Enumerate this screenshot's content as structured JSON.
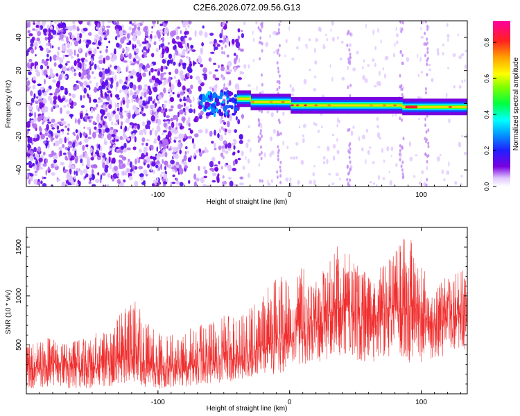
{
  "figure": {
    "title": "C2E6.2026.072.09.56.G13"
  },
  "chart_data": [
    {
      "type": "heatmap",
      "title": "C2E6.2026.072.09.56.G13",
      "xlabel": "Height of straight line (km)",
      "ylabel": "Frequency (Hz)",
      "xlim": [
        -200,
        135
      ],
      "ylim": [
        -50,
        50
      ],
      "xticks": [
        -100,
        0,
        100
      ],
      "xtick_labels": [
        "-100",
        "0",
        "100"
      ],
      "yticks": [
        -40,
        -20,
        0,
        20,
        40
      ],
      "ytick_labels": [
        "-40",
        "-20",
        "0",
        "20",
        "40"
      ],
      "colorbar": {
        "label": "Normalized spectral amplitude",
        "range": [
          0,
          0.92
        ],
        "ticks": [
          0.0,
          0.2,
          0.4,
          0.6,
          0.8
        ],
        "tick_labels": [
          "0.0",
          "0.2",
          "0.4",
          "0.6",
          "0.8"
        ],
        "colormap": "rainbow (white-violet-blue-cyan-green-yellow-orange-red-magenta)"
      },
      "regions": [
        {
          "name": "scattered noise",
          "x_range": [
            -200,
            -35
          ],
          "amplitude": 0.1
        },
        {
          "name": "signal onset cluster",
          "x_range": [
            -68,
            -40
          ],
          "freq_range": [
            -8,
            8
          ],
          "amplitude": 0.25
        },
        {
          "name": "narrow band near 0 Hz",
          "x_range": [
            -40,
            135
          ],
          "freq_center": 0,
          "amplitude": 0.8
        },
        {
          "name": "strongest segment",
          "x_range": [
            88,
            97
          ],
          "freq_center": -2,
          "amplitude": 0.85
        }
      ]
    },
    {
      "type": "line",
      "xlabel": "Height of straight line (km)",
      "ylabel": "SNR (10 * v/v)",
      "xlim": [
        -200,
        135
      ],
      "ylim": [
        0,
        1700
      ],
      "xticks": [
        -100,
        0,
        100
      ],
      "xtick_labels": [
        "-100",
        "0",
        "100"
      ],
      "yticks": [
        500,
        1000,
        1500
      ],
      "ytick_labels": [
        "500",
        "1000",
        "1500"
      ],
      "series": [
        {
          "name": "SNR",
          "color": "#f03030",
          "x": [
            -200,
            -190,
            -180,
            -170,
            -160,
            -150,
            -140,
            -130,
            -120,
            -110,
            -100,
            -90,
            -80,
            -70,
            -60,
            -50,
            -40,
            -30,
            -20,
            -10,
            0,
            10,
            20,
            30,
            40,
            50,
            60,
            70,
            80,
            90,
            100,
            110,
            120,
            130,
            135
          ],
          "mean": [
            250,
            280,
            300,
            290,
            260,
            270,
            300,
            330,
            380,
            320,
            270,
            260,
            280,
            300,
            330,
            350,
            380,
            420,
            480,
            560,
            600,
            700,
            720,
            780,
            900,
            820,
            760,
            820,
            850,
            900,
            780,
            720,
            760,
            820,
            800
          ],
          "peak": [
            500,
            560,
            600,
            520,
            560,
            600,
            700,
            800,
            1050,
            800,
            650,
            600,
            650,
            700,
            720,
            800,
            850,
            900,
            1000,
            1250,
            1200,
            1300,
            1150,
            1350,
            1620,
            1350,
            1200,
            1300,
            1450,
            1700,
            1350,
            1100,
            1200,
            1250,
            1300
          ],
          "trough": [
            50,
            60,
            70,
            60,
            40,
            50,
            60,
            80,
            100,
            70,
            50,
            60,
            70,
            90,
            100,
            120,
            130,
            150,
            180,
            200,
            250,
            300,
            320,
            350,
            400,
            350,
            300,
            350,
            380,
            300,
            280,
            350,
            400,
            450,
            450
          ]
        }
      ]
    }
  ]
}
